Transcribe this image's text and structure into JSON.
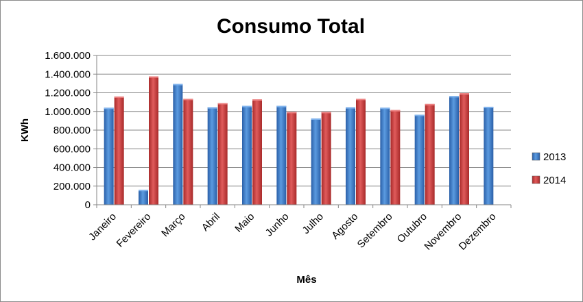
{
  "chart_data": {
    "type": "bar",
    "title": "Consumo Total",
    "xlabel": "Mês",
    "ylabel": "KWh",
    "categories": [
      "Janeiro",
      "Fevereiro",
      "Março",
      "Abril",
      "Maio",
      "Junho",
      "Julho",
      "Agosto",
      "Setembro",
      "Outubro",
      "Novembro",
      "Dezembro"
    ],
    "series": [
      {
        "name": "2013",
        "color": "#3a78c8",
        "values": [
          1040000,
          160000,
          1295000,
          1045000,
          1060000,
          1060000,
          925000,
          1045000,
          1040000,
          965000,
          1165000,
          1050000
        ]
      },
      {
        "name": "2014",
        "color": "#c83a3a",
        "values": [
          1160000,
          1375000,
          1135000,
          1090000,
          1130000,
          995000,
          995000,
          1135000,
          1015000,
          1080000,
          1195000,
          null
        ]
      }
    ],
    "ylim": [
      0,
      1600000
    ],
    "yticks": [
      0,
      200000,
      400000,
      600000,
      800000,
      1000000,
      1200000,
      1400000,
      1600000
    ],
    "ytick_labels": [
      "0",
      "200.000",
      "400.000",
      "600.000",
      "800.000",
      "1.000.000",
      "1.200.000",
      "1.400.000",
      "1.600.000"
    ],
    "grid": true,
    "legend": "right"
  }
}
